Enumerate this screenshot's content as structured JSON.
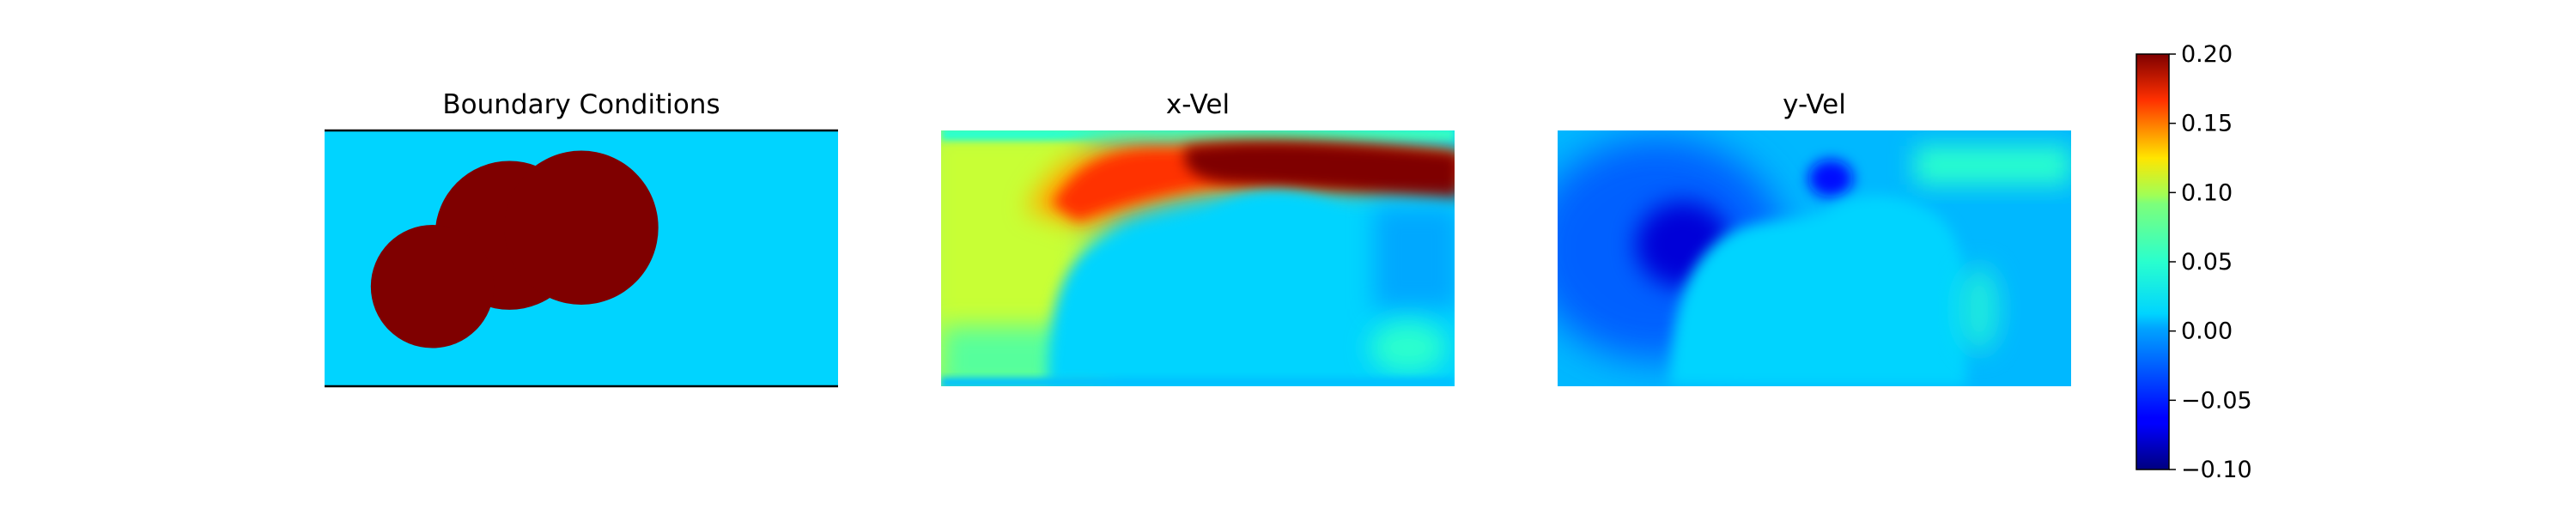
{
  "chart_data": {
    "type": "heatmap",
    "colormap": "jet",
    "panels": [
      {
        "title": "Boundary Conditions",
        "field": "boundary"
      },
      {
        "title": "x-Vel",
        "field": "x_velocity"
      },
      {
        "title": "y-Vel",
        "field": "y_velocity"
      }
    ],
    "colorbar": {
      "min": -0.1,
      "max": 0.2,
      "ticks": [
        "0.20",
        "0.15",
        "0.10",
        "0.05",
        "0.00",
        "−0.05",
        "−0.10"
      ],
      "tick_values": [
        0.2,
        0.15,
        0.1,
        0.05,
        0.0,
        -0.05,
        -0.1
      ]
    },
    "boundary": {
      "fluid_value": 0.0,
      "solid_value": 0.2,
      "obstacles": [
        {
          "shape": "circle",
          "cx": 0.36,
          "cy": 0.41,
          "r": 0.145
        },
        {
          "shape": "circle",
          "cx": 0.21,
          "cy": 0.61,
          "r": 0.12
        },
        {
          "shape": "circle",
          "cx": 0.5,
          "cy": 0.38,
          "r": 0.15
        }
      ],
      "walls": [
        "top",
        "bottom"
      ]
    }
  }
}
